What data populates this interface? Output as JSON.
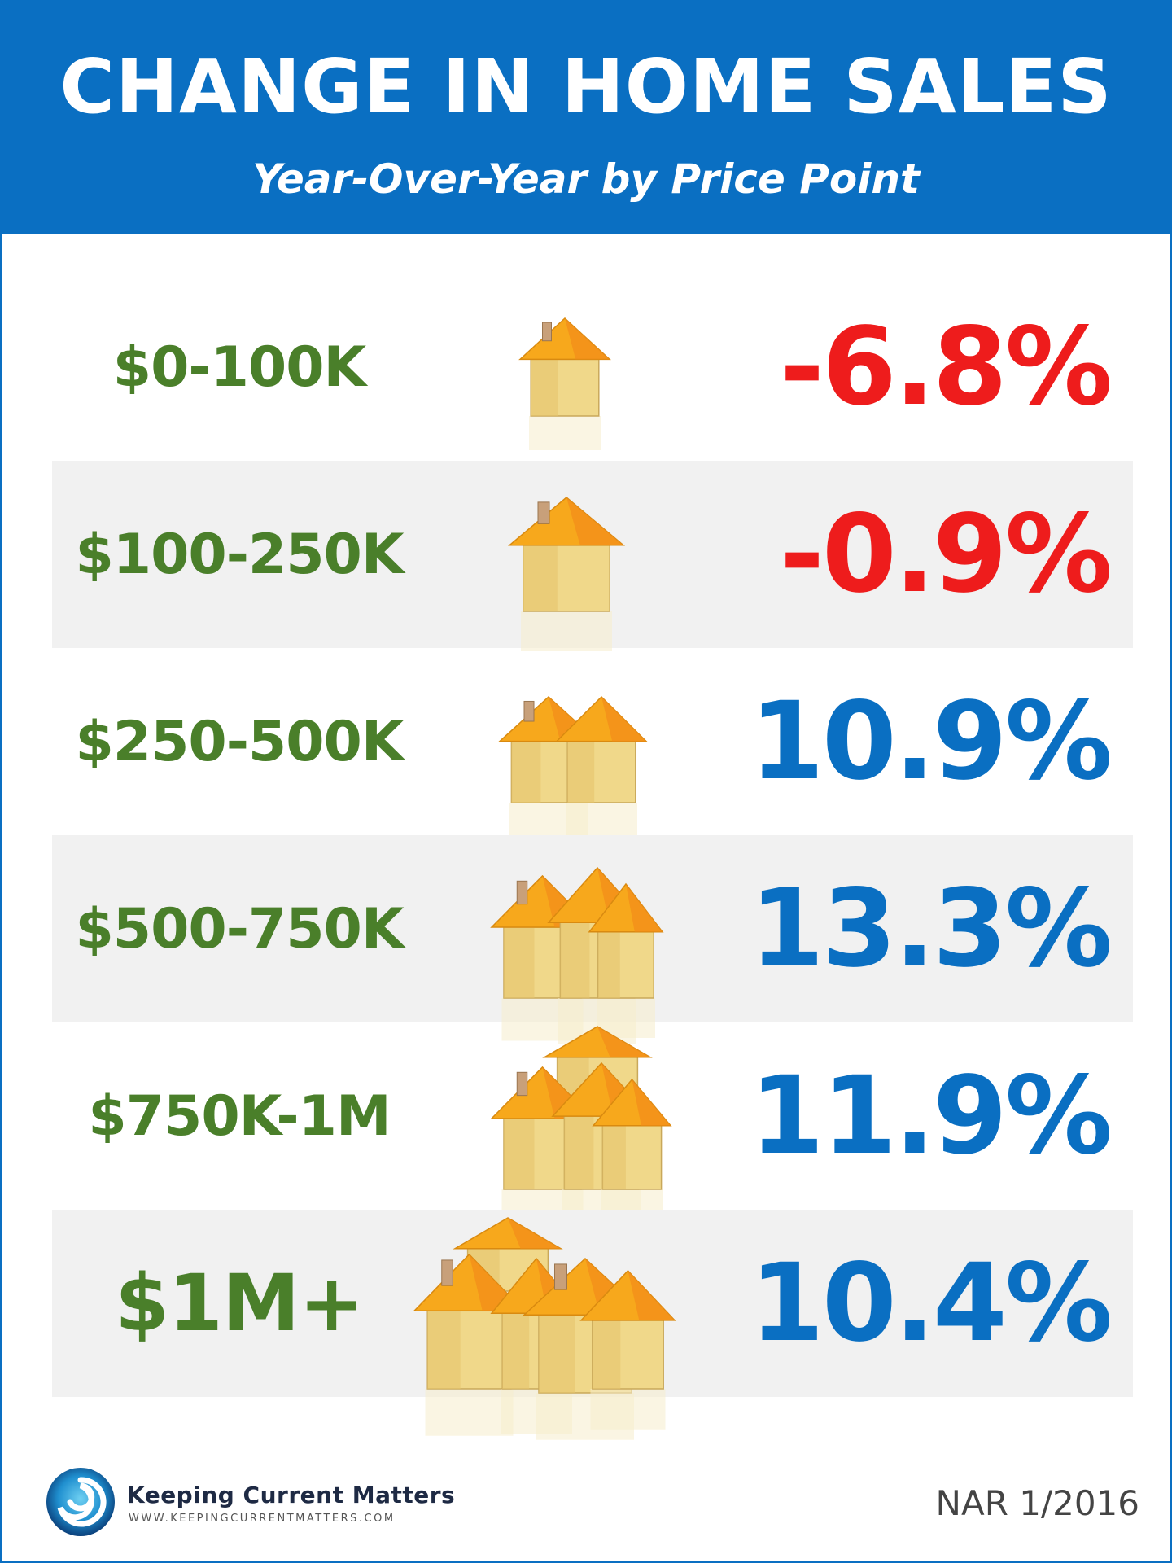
{
  "header": {
    "title": "CHANGE IN HOME SALES",
    "subtitle": "Year-Over-Year by Price Point"
  },
  "chart_data": {
    "type": "table",
    "title": "CHANGE IN HOME SALES",
    "subtitle": "Year-Over-Year by Price Point",
    "categories": [
      "$0-100K",
      "$100-250K",
      "$250-500K",
      "$500-750K",
      "$750K-1M",
      "$1M+"
    ],
    "values": [
      -6.8,
      -0.9,
      10.9,
      13.3,
      11.9,
      10.4
    ],
    "value_labels": [
      "-6.8%",
      "-0.9%",
      "10.9%",
      "13.3%",
      "11.9%",
      "10.4%"
    ],
    "unit": "%"
  },
  "rows": [
    {
      "price": "$0-100K",
      "change": "-6.8%",
      "sign": "neg",
      "house_size": 1
    },
    {
      "price": "$100-250K",
      "change": "-0.9%",
      "sign": "neg",
      "house_size": 2
    },
    {
      "price": "$250-500K",
      "change": "10.9%",
      "sign": "pos",
      "house_size": 3
    },
    {
      "price": "$500-750K",
      "change": "13.3%",
      "sign": "pos",
      "house_size": 4
    },
    {
      "price": "$750K-1M",
      "change": "11.9%",
      "sign": "pos",
      "house_size": 5
    },
    {
      "price": "$1M+",
      "change": "10.4%",
      "sign": "pos",
      "house_size": 6
    }
  ],
  "colors": {
    "header_bg": "#0a6fc2",
    "price_text": "#4a7f2a",
    "negative": "#ee1c1c",
    "positive": "#0a6fc2",
    "roof": "#f7a81c",
    "wall": "#f0d88a"
  },
  "footer": {
    "brand": "Keeping Current Matters",
    "url": "WWW.KEEPINGCURRENTMATTERS.COM",
    "source": "NAR 1/2016",
    "logo_icon": "swirl-logo-icon"
  }
}
